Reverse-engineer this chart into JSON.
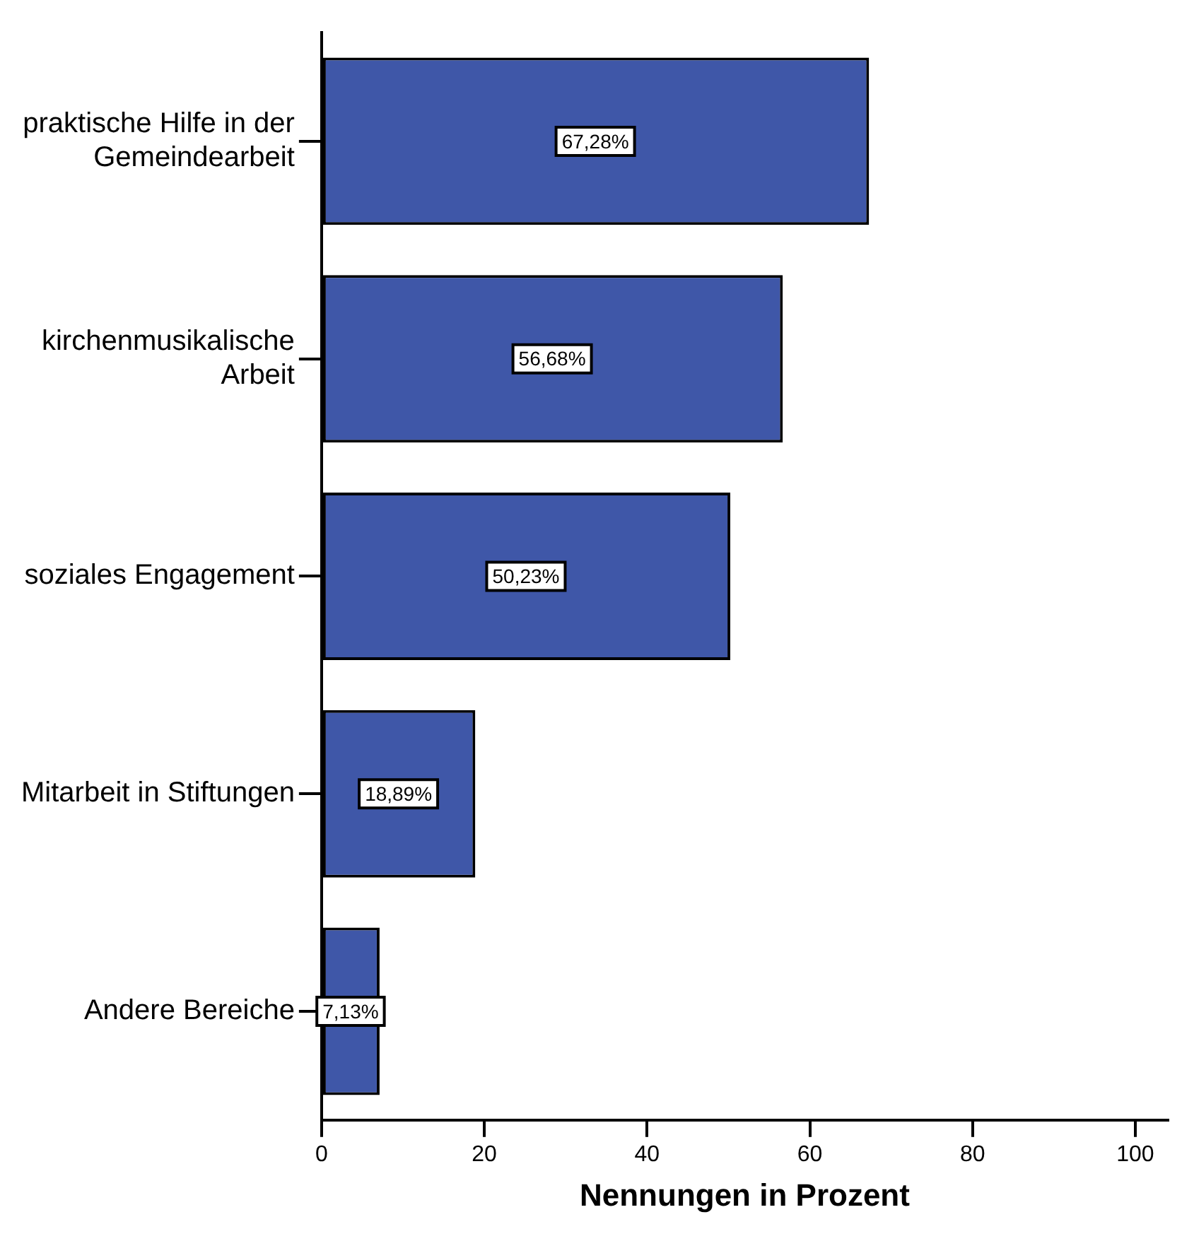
{
  "chart_data": {
    "type": "bar",
    "orientation": "horizontal",
    "xlabel": "Nennungen in Prozent",
    "categories": [
      "praktische Hilfe in der Gemeindearbeit",
      "kirchenmusikalische Arbeit",
      "soziales Engagement",
      "Mitarbeit in Stiftungen",
      "Andere Bereiche"
    ],
    "values": [
      67.28,
      56.68,
      50.23,
      18.89,
      7.13
    ],
    "value_labels": [
      "67,28%",
      "56,68%",
      "50,23%",
      "18,89%",
      "7,13%"
    ],
    "color": "#3f57a8",
    "xlim": [
      0,
      104
    ],
    "xticks": [
      0,
      20,
      40,
      60,
      80,
      100
    ],
    "grid": false,
    "legend": false
  }
}
